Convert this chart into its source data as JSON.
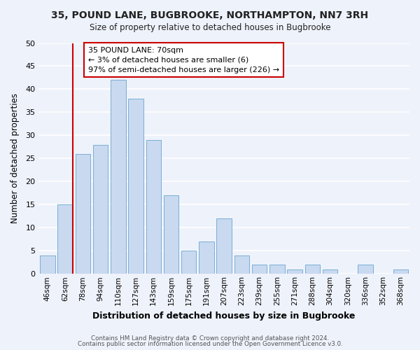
{
  "title_line1": "35, POUND LANE, BUGBROOKE, NORTHAMPTON, NN7 3RH",
  "title_line2": "Size of property relative to detached houses in Bugbrooke",
  "xlabel": "Distribution of detached houses by size in Bugbrooke",
  "ylabel": "Number of detached properties",
  "bar_labels": [
    "46sqm",
    "62sqm",
    "78sqm",
    "94sqm",
    "110sqm",
    "127sqm",
    "143sqm",
    "159sqm",
    "175sqm",
    "191sqm",
    "207sqm",
    "223sqm",
    "239sqm",
    "255sqm",
    "271sqm",
    "288sqm",
    "304sqm",
    "320sqm",
    "336sqm",
    "352sqm",
    "368sqm"
  ],
  "bar_values": [
    4,
    15,
    26,
    28,
    42,
    38,
    29,
    17,
    5,
    7,
    12,
    4,
    2,
    2,
    1,
    2,
    1,
    0,
    2,
    0,
    1
  ],
  "bar_color": "#c8d9f0",
  "bar_edge_color": "#7bafd4",
  "ylim": [
    0,
    50
  ],
  "yticks": [
    0,
    5,
    10,
    15,
    20,
    25,
    30,
    35,
    40,
    45,
    50
  ],
  "vline_index": 1,
  "vline_color": "#cc0000",
  "annotation_title": "35 POUND LANE: 70sqm",
  "annotation_line2": "← 3% of detached houses are smaller (6)",
  "annotation_line3": "97% of semi-detached houses are larger (226) →",
  "annotation_box_edge": "#cc0000",
  "footer_line1": "Contains HM Land Registry data © Crown copyright and database right 2024.",
  "footer_line2": "Contains public sector information licensed under the Open Government Licence v3.0.",
  "background_color": "#eef2fb",
  "grid_color": "#ffffff"
}
